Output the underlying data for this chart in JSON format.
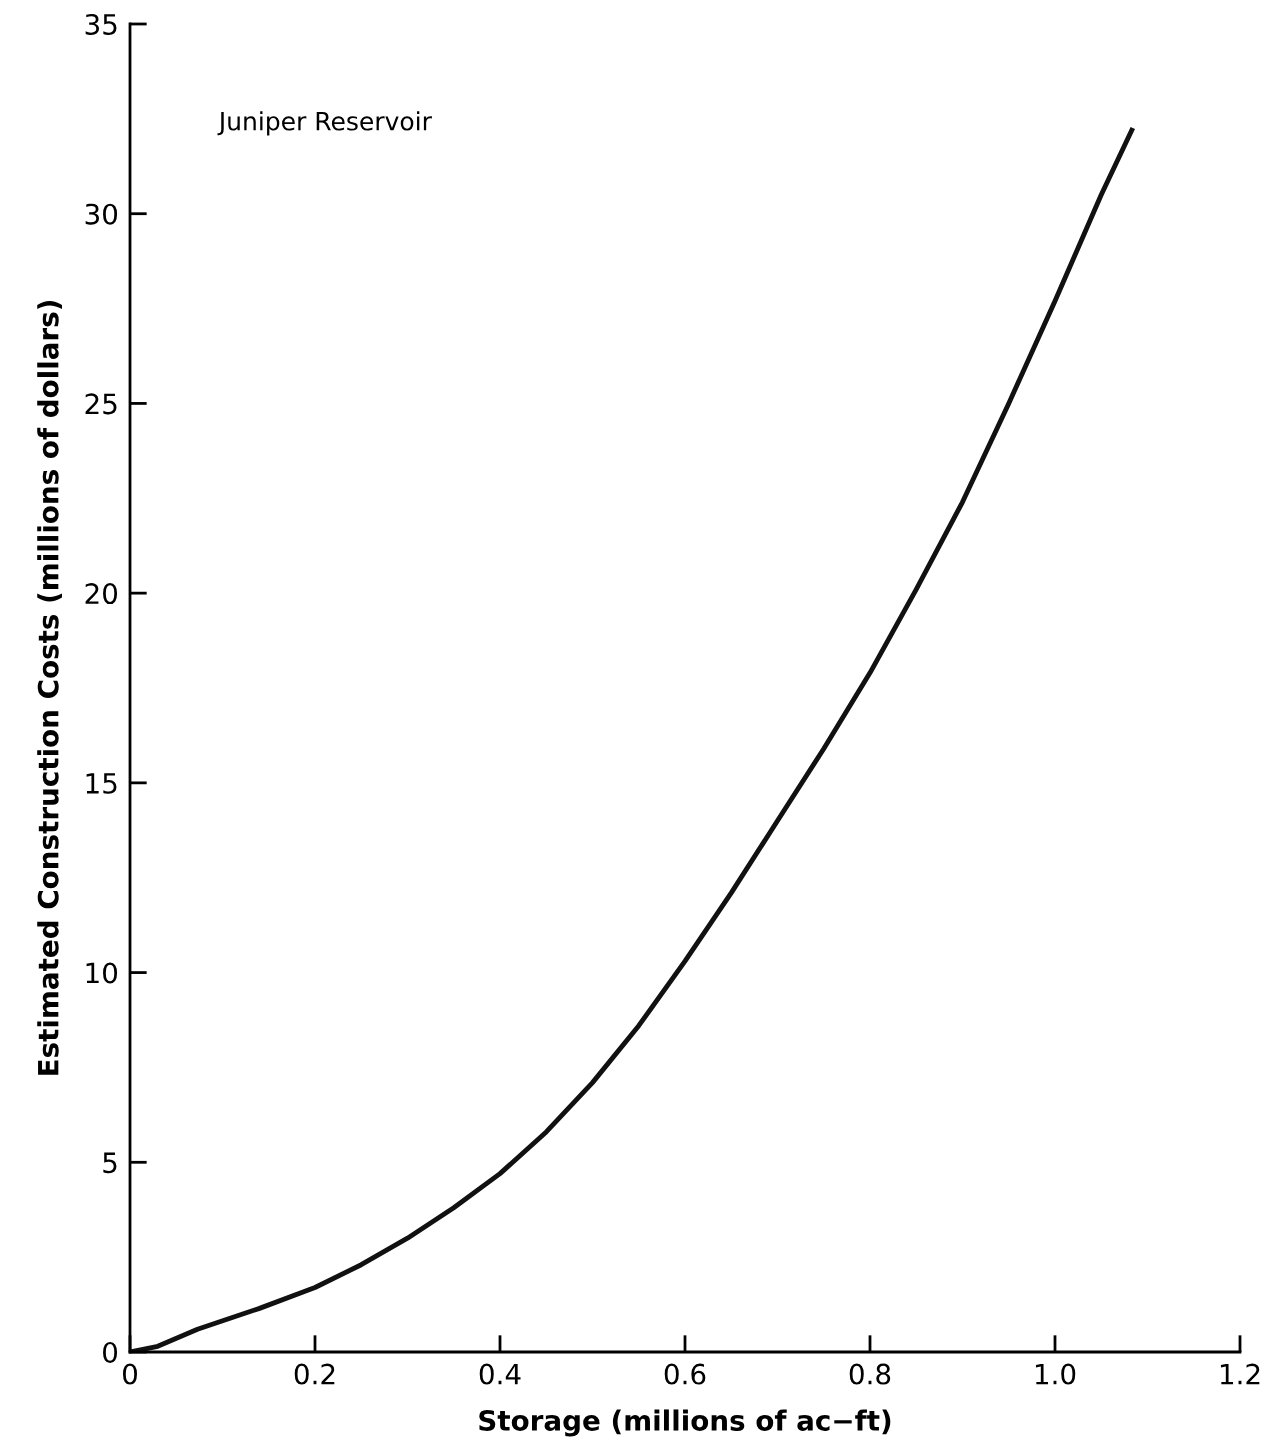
{
  "chart_data": {
    "type": "line",
    "xlabel": "Storage (millions of ac−ft)",
    "ylabel": "Estimated Construction Costs (millions of dollars)",
    "annotations": [
      "Juniper Reservoir"
    ],
    "series": [
      {
        "color": "#111111",
        "x": [
          0,
          0.03,
          0.073,
          0.14,
          0.2,
          0.25,
          0.3,
          0.35,
          0.4,
          0.45,
          0.5,
          0.55,
          0.6,
          0.65,
          0.7,
          0.75,
          0.8,
          0.85,
          0.9,
          0.95,
          1.0,
          1.05,
          1.083
        ],
        "values": [
          0,
          0.15,
          0.6,
          1.15,
          1.7,
          2.3,
          3.0,
          3.8,
          4.7,
          5.8,
          7.1,
          8.6,
          10.3,
          12.1,
          14.0,
          15.9,
          17.9,
          20.1,
          22.4,
          25.0,
          27.7,
          30.5,
          32.2
        ]
      }
    ],
    "xlim": [
      0,
      1.2
    ],
    "xticks": [
      0,
      0.2,
      0.4,
      0.6,
      0.8,
      {
        "value": 1.0,
        "label": "1.0"
      },
      1.2
    ],
    "ylim": [
      0,
      35
    ],
    "yticks": [
      0,
      5,
      10,
      15,
      20,
      25,
      30,
      35
    ],
    "grid": false,
    "legend": false,
    "marker": "none",
    "line_style": "solid"
  }
}
